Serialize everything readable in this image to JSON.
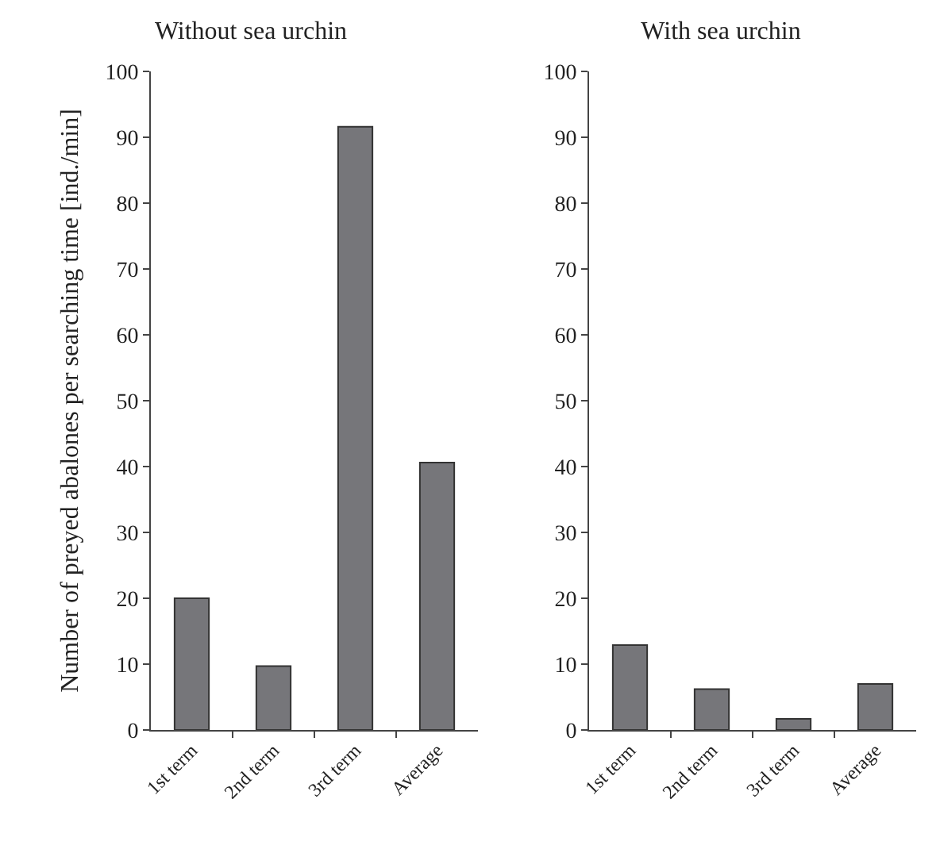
{
  "chart_data": [
    {
      "type": "bar",
      "title": "Without sea urchin",
      "ylabel": "Number of preyed abalones per searching time [ind./min]",
      "categories": [
        "1st term",
        "2nd term",
        "3rd term",
        "Average"
      ],
      "values": [
        20.0,
        9.7,
        91.6,
        40.6
      ],
      "color": "#76767a",
      "ylim": [
        0,
        100
      ],
      "yticks": [
        0,
        10,
        20,
        30,
        40,
        50,
        60,
        70,
        80,
        90,
        100
      ],
      "grid": false,
      "legend": false
    },
    {
      "type": "bar",
      "title": "With sea urchin",
      "categories": [
        "1st term",
        "2nd term",
        "3rd term",
        "Average"
      ],
      "values": [
        12.9,
        6.2,
        1.7,
        7.0
      ],
      "color": "#76767a",
      "ylim": [
        0,
        100
      ],
      "yticks": [
        0,
        10,
        20,
        30,
        40,
        50,
        60,
        70,
        80,
        90,
        100
      ],
      "grid": false,
      "legend": false
    }
  ]
}
